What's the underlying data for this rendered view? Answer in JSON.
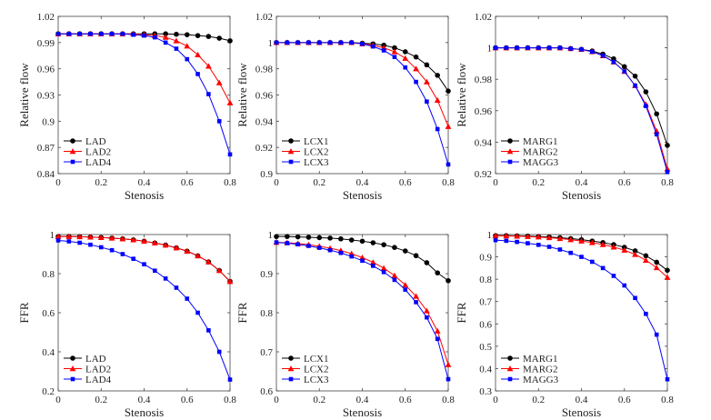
{
  "chart_data": [
    {
      "type": "line",
      "xlabel": "Stenosis",
      "ylabel": "Relative flow",
      "xlim": [
        0,
        0.8
      ],
      "ylim": [
        0.84,
        1.02
      ],
      "xticks": [
        "0",
        "0.2",
        "0.4",
        "0.6",
        "0.8"
      ],
      "yticks": [
        "0.84",
        "0.87",
        "0.9",
        "0.93",
        "0.96",
        "0.99",
        "1.02"
      ],
      "legend_position": "bottom-left",
      "x": [
        0,
        0.05,
        0.1,
        0.15,
        0.2,
        0.25,
        0.3,
        0.35,
        0.4,
        0.45,
        0.5,
        0.55,
        0.6,
        0.65,
        0.7,
        0.75,
        0.8
      ],
      "series": [
        {
          "name": "LAD",
          "color": "#000000",
          "marker": "circle",
          "values": [
            1.0,
            1.0,
            1.0,
            1.0,
            1.0,
            1.0,
            1.0,
            1.0,
            1.0,
            1.0,
            1.0,
            0.9995,
            0.999,
            0.998,
            0.997,
            0.995,
            0.992
          ]
        },
        {
          "name": "LAD2",
          "color": "#ff0000",
          "marker": "triangle",
          "values": [
            1.0,
            1.0,
            1.0,
            1.0,
            1.0,
            1.0,
            1.0,
            1.0,
            0.999,
            0.998,
            0.996,
            0.992,
            0.986,
            0.976,
            0.963,
            0.944,
            0.921
          ]
        },
        {
          "name": "LAD4",
          "color": "#0000ff",
          "marker": "square",
          "values": [
            1.0,
            1.0,
            1.0,
            1.0,
            1.0,
            1.0,
            1.0,
            0.999,
            0.998,
            0.996,
            0.99,
            0.983,
            0.971,
            0.954,
            0.931,
            0.9,
            0.862
          ]
        }
      ]
    },
    {
      "type": "line",
      "xlabel": "Stenosis",
      "ylabel": "Relative flow",
      "xlim": [
        0,
        0.8
      ],
      "ylim": [
        0.9,
        1.02
      ],
      "xticks": [
        "0",
        "0.2",
        "0.4",
        "0.6",
        "0.8"
      ],
      "yticks": [
        "0.9",
        "0.92",
        "0.94",
        "0.96",
        "0.98",
        "1",
        "1.02"
      ],
      "legend_position": "bottom-left",
      "x": [
        0,
        0.05,
        0.1,
        0.15,
        0.2,
        0.25,
        0.3,
        0.35,
        0.4,
        0.45,
        0.5,
        0.55,
        0.6,
        0.65,
        0.7,
        0.75,
        0.8
      ],
      "series": [
        {
          "name": "LCX1",
          "color": "#000000",
          "marker": "circle",
          "values": [
            1.0,
            1.0,
            1.0,
            1.0,
            1.0,
            1.0,
            1.0,
            1.0,
            0.9995,
            0.999,
            0.998,
            0.996,
            0.993,
            0.989,
            0.983,
            0.975,
            0.963
          ]
        },
        {
          "name": "LCX2",
          "color": "#ff0000",
          "marker": "triangle",
          "values": [
            1.0,
            1.0,
            1.0,
            1.0,
            1.0,
            1.0,
            1.0,
            1.0,
            0.999,
            0.998,
            0.996,
            0.993,
            0.988,
            0.98,
            0.97,
            0.956,
            0.936
          ]
        },
        {
          "name": "LCX3",
          "color": "#0000ff",
          "marker": "square",
          "values": [
            1.0,
            1.0,
            1.0,
            1.0,
            1.0,
            1.0,
            1.0,
            1.0,
            0.999,
            0.997,
            0.994,
            0.989,
            0.981,
            0.97,
            0.955,
            0.934,
            0.907
          ]
        }
      ]
    },
    {
      "type": "line",
      "xlabel": "Stenosis",
      "ylabel": "Relative flow",
      "xlim": [
        0,
        0.8
      ],
      "ylim": [
        0.92,
        1.02
      ],
      "xticks": [
        "0",
        "0.2",
        "0.4",
        "0.6",
        "0.8"
      ],
      "yticks": [
        "0.92",
        "0.94",
        "0.96",
        "0.98",
        "1",
        "1.02"
      ],
      "legend_position": "bottom-left",
      "x": [
        0,
        0.05,
        0.1,
        0.15,
        0.2,
        0.25,
        0.3,
        0.35,
        0.4,
        0.45,
        0.5,
        0.55,
        0.6,
        0.65,
        0.7,
        0.75,
        0.8
      ],
      "series": [
        {
          "name": "MARG1",
          "color": "#000000",
          "marker": "circle",
          "values": [
            1.0,
            1.0,
            1.0,
            1.0,
            1.0,
            1.0,
            1.0,
            0.9995,
            0.999,
            0.998,
            0.996,
            0.993,
            0.988,
            0.982,
            0.972,
            0.958,
            0.938
          ]
        },
        {
          "name": "MARG2",
          "color": "#ff0000",
          "marker": "triangle",
          "values": [
            1.0,
            1.0,
            1.0,
            1.0,
            1.0,
            1.0,
            1.0,
            0.9995,
            0.999,
            0.9975,
            0.995,
            0.991,
            0.985,
            0.976,
            0.964,
            0.947,
            0.923
          ]
        },
        {
          "name": "MAGG3",
          "color": "#0000ff",
          "marker": "square",
          "values": [
            1.0,
            1.0,
            1.0,
            1.0,
            1.0,
            1.0,
            1.0,
            0.9995,
            0.999,
            0.9975,
            0.995,
            0.991,
            0.985,
            0.976,
            0.963,
            0.945,
            0.921
          ]
        }
      ]
    },
    {
      "type": "line",
      "xlabel": "Stenosis",
      "ylabel": "FFR",
      "xlim": [
        0,
        0.8
      ],
      "ylim": [
        0.2,
        1.0
      ],
      "xticks": [
        "0",
        "0.2",
        "0.4",
        "0.6",
        "0.8"
      ],
      "yticks": [
        "0.2",
        "0.4",
        "0.6",
        "0.8",
        "1"
      ],
      "legend_position": "bottom-left",
      "x": [
        0,
        0.05,
        0.1,
        0.15,
        0.2,
        0.25,
        0.3,
        0.35,
        0.4,
        0.45,
        0.5,
        0.55,
        0.6,
        0.65,
        0.7,
        0.75,
        0.8
      ],
      "series": [
        {
          "name": "LAD",
          "color": "#000000",
          "marker": "circle",
          "values": [
            0.99,
            0.99,
            0.989,
            0.987,
            0.985,
            0.982,
            0.978,
            0.973,
            0.966,
            0.957,
            0.946,
            0.932,
            0.915,
            0.891,
            0.86,
            0.816,
            0.76
          ]
        },
        {
          "name": "LAD2",
          "color": "#ff0000",
          "marker": "triangle",
          "values": [
            0.99,
            0.99,
            0.989,
            0.987,
            0.985,
            0.982,
            0.978,
            0.973,
            0.966,
            0.957,
            0.946,
            0.932,
            0.915,
            0.891,
            0.86,
            0.816,
            0.76
          ]
        },
        {
          "name": "LAD4",
          "color": "#0000ff",
          "marker": "square",
          "values": [
            0.97,
            0.965,
            0.958,
            0.948,
            0.935,
            0.92,
            0.9,
            0.876,
            0.848,
            0.815,
            0.775,
            0.728,
            0.672,
            0.6,
            0.51,
            0.4,
            0.258
          ]
        }
      ]
    },
    {
      "type": "line",
      "xlabel": "Stenosis",
      "ylabel": "FFR",
      "xlim": [
        0,
        0.8
      ],
      "ylim": [
        0.6,
        1.0
      ],
      "xticks": [
        "0",
        "0.2",
        "0.4",
        "0.6",
        "0.8"
      ],
      "yticks": [
        "0.6",
        "0.7",
        "0.8",
        "0.9",
        "1"
      ],
      "legend_position": "bottom-left",
      "x": [
        0,
        0.05,
        0.1,
        0.15,
        0.2,
        0.25,
        0.3,
        0.35,
        0.4,
        0.45,
        0.5,
        0.55,
        0.6,
        0.65,
        0.7,
        0.75,
        0.8
      ],
      "series": [
        {
          "name": "LCX1",
          "color": "#000000",
          "marker": "circle",
          "values": [
            0.995,
            0.995,
            0.994,
            0.993,
            0.992,
            0.991,
            0.989,
            0.986,
            0.983,
            0.979,
            0.974,
            0.967,
            0.958,
            0.946,
            0.928,
            0.902,
            0.882
          ]
        },
        {
          "name": "LCX2",
          "color": "#ff0000",
          "marker": "triangle",
          "values": [
            0.98,
            0.979,
            0.977,
            0.974,
            0.97,
            0.965,
            0.959,
            0.951,
            0.941,
            0.929,
            0.914,
            0.895,
            0.871,
            0.842,
            0.805,
            0.753,
            0.667
          ]
        },
        {
          "name": "LCX3",
          "color": "#0000ff",
          "marker": "square",
          "values": [
            0.98,
            0.978,
            0.975,
            0.971,
            0.966,
            0.96,
            0.953,
            0.944,
            0.933,
            0.92,
            0.904,
            0.884,
            0.859,
            0.827,
            0.788,
            0.733,
            0.63
          ]
        }
      ]
    },
    {
      "type": "line",
      "xlabel": "Stenosis",
      "ylabel": "FFR",
      "xlim": [
        0,
        0.8
      ],
      "ylim": [
        0.3,
        1.0
      ],
      "xticks": [
        "0",
        "0.2",
        "0.4",
        "0.6",
        "0.8"
      ],
      "yticks": [
        "0.3",
        "0.4",
        "0.5",
        "0.6",
        "0.7",
        "0.8",
        "0.9",
        "1"
      ],
      "legend_position": "bottom-left",
      "x": [
        0,
        0.05,
        0.1,
        0.15,
        0.2,
        0.25,
        0.3,
        0.35,
        0.4,
        0.45,
        0.5,
        0.55,
        0.6,
        0.65,
        0.7,
        0.75,
        0.8
      ],
      "series": [
        {
          "name": "MARG1",
          "color": "#000000",
          "marker": "circle",
          "values": [
            0.995,
            0.995,
            0.994,
            0.993,
            0.991,
            0.989,
            0.986,
            0.982,
            0.977,
            0.971,
            0.964,
            0.955,
            0.943,
            0.927,
            0.905,
            0.876,
            0.84
          ]
        },
        {
          "name": "MARG2",
          "color": "#ff0000",
          "marker": "triangle",
          "values": [
            0.995,
            0.994,
            0.993,
            0.991,
            0.989,
            0.986,
            0.982,
            0.977,
            0.971,
            0.964,
            0.955,
            0.944,
            0.93,
            0.911,
            0.885,
            0.852,
            0.808
          ]
        },
        {
          "name": "MAGG3",
          "color": "#0000ff",
          "marker": "square",
          "values": [
            0.975,
            0.972,
            0.967,
            0.961,
            0.954,
            0.945,
            0.933,
            0.918,
            0.9,
            0.878,
            0.85,
            0.815,
            0.772,
            0.716,
            0.645,
            0.552,
            0.352
          ]
        }
      ]
    }
  ]
}
